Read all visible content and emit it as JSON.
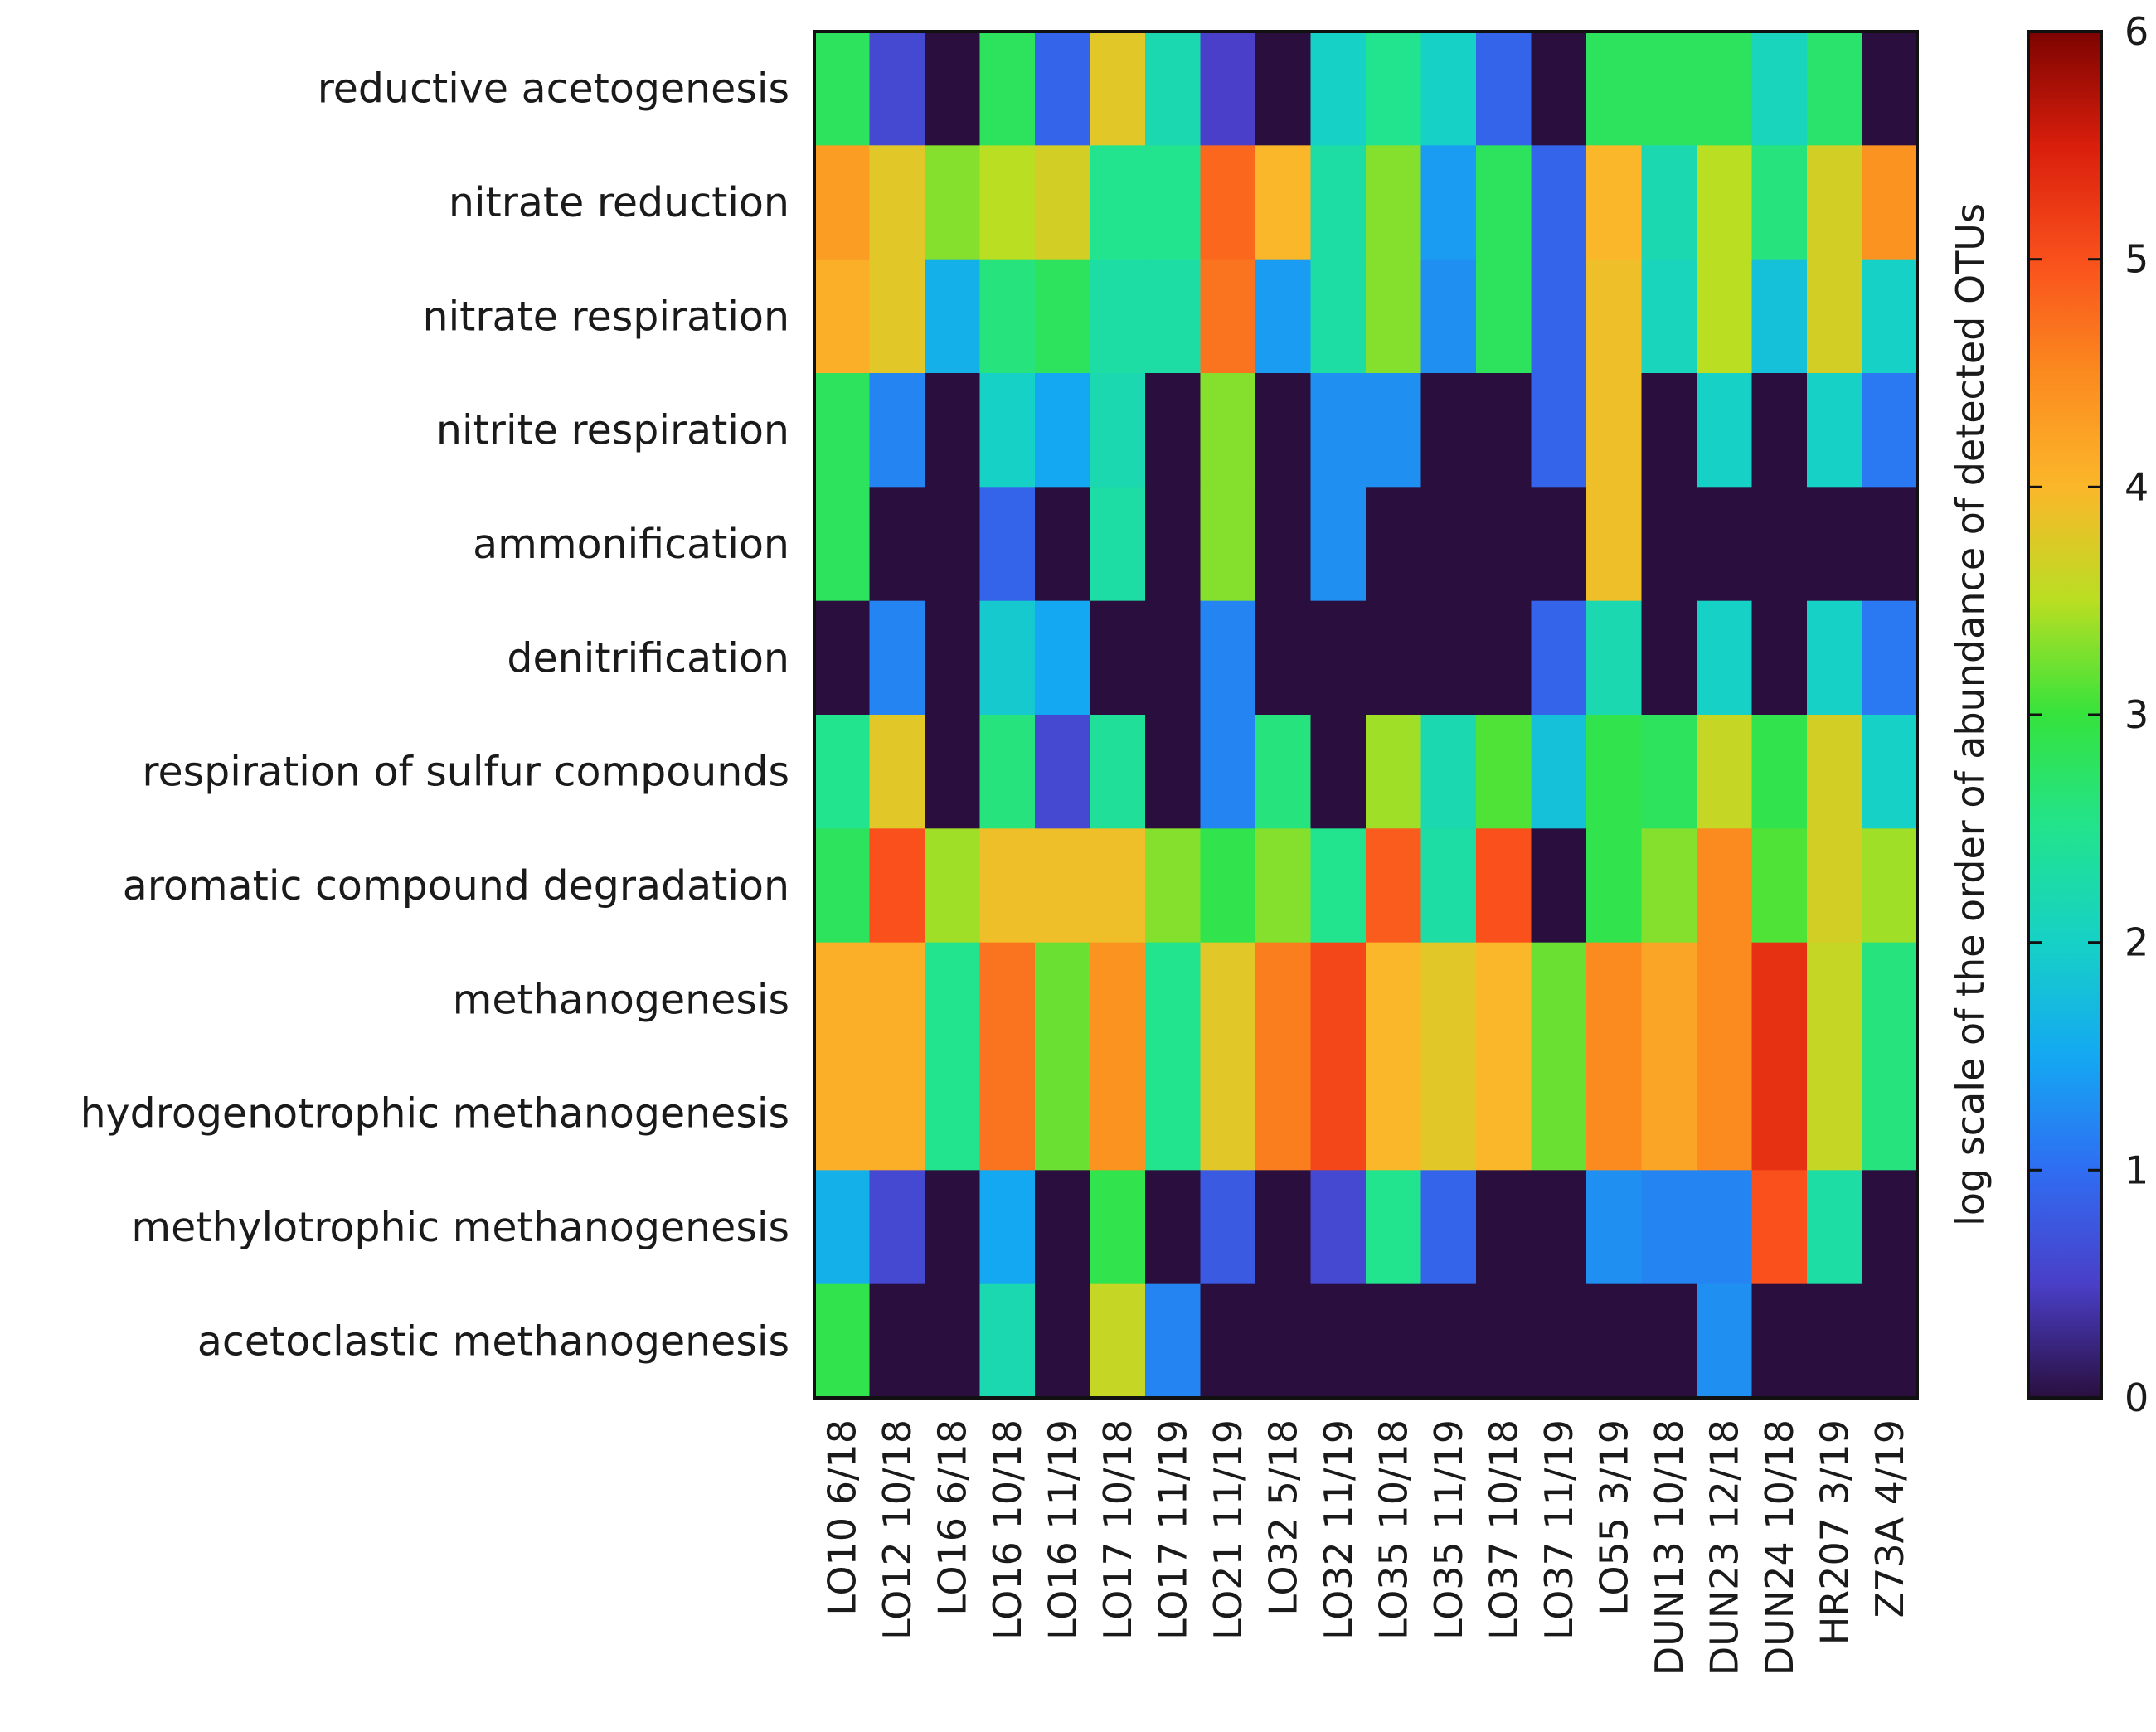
{
  "chart_data": {
    "type": "heatmap",
    "title": "",
    "xlabel": "",
    "ylabel": "",
    "colorbar": {
      "label": "log scale of the order of abundance of detected OTUs",
      "range": [
        0,
        6
      ],
      "ticks": [
        "0",
        "1",
        "2",
        "3",
        "4",
        "5",
        "6"
      ],
      "colormap": [
        {
          "v": 0.0,
          "c": "#2a0f3e"
        },
        {
          "v": 0.5,
          "c": "#4a3fc8"
        },
        {
          "v": 1.0,
          "c": "#2f6df2"
        },
        {
          "v": 1.5,
          "c": "#14a8f2"
        },
        {
          "v": 2.0,
          "c": "#16d1c6"
        },
        {
          "v": 2.5,
          "c": "#22e38e"
        },
        {
          "v": 3.0,
          "c": "#35e33c"
        },
        {
          "v": 3.5,
          "c": "#b9de22"
        },
        {
          "v": 4.0,
          "c": "#fbb72a"
        },
        {
          "v": 4.5,
          "c": "#fb8a1f"
        },
        {
          "v": 5.0,
          "c": "#f9501c"
        },
        {
          "v": 5.5,
          "c": "#d91e0c"
        },
        {
          "v": 6.0,
          "c": "#7c0301"
        }
      ]
    },
    "rows": [
      "reductive acetogenesis",
      "nitrate reduction",
      "nitrate respiration",
      "nitrite respiration",
      "ammonification",
      "denitrification",
      "respiration of sulfur compounds",
      "aromatic compound degradation",
      "methanogenesis",
      "hydrogenotrophic methanogenesis",
      "methylotrophic methanogenesis",
      "acetoclastic methanogenesis"
    ],
    "columns": [
      "LO10 6/18",
      "LO12 10/18",
      "LO16 6/18",
      "LO16 10/18",
      "LO16 11/19",
      "LO17 10/18",
      "LO17 11/19",
      "LO21 11/19",
      "LO32 5/18",
      "LO32 11/19",
      "LO35 10/18",
      "LO35 11/19",
      "LO37 10/18",
      "LO37 11/19",
      "LO55 3/19",
      "DUN13 10/18",
      "DUN23 12/18",
      "DUN24 10/18",
      "HR207 3/19",
      "Z73A 4/19"
    ],
    "values": [
      [
        2.8,
        0.6,
        0.0,
        2.8,
        0.9,
        3.8,
        2.2,
        0.5,
        0.0,
        2.0,
        2.5,
        2.0,
        0.9,
        0.0,
        2.8,
        2.8,
        2.8,
        2.1,
        2.7,
        0.0
      ],
      [
        4.3,
        3.8,
        3.3,
        3.5,
        3.7,
        2.5,
        2.5,
        4.8,
        4.0,
        2.3,
        3.3,
        1.4,
        2.8,
        0.9,
        4.0,
        2.2,
        3.5,
        2.6,
        3.7,
        4.4
      ],
      [
        4.1,
        3.8,
        1.6,
        2.6,
        2.8,
        2.3,
        2.3,
        4.7,
        1.4,
        2.3,
        3.3,
        1.3,
        2.8,
        0.9,
        3.9,
        2.1,
        3.5,
        1.8,
        3.7,
        2.0
      ],
      [
        2.8,
        1.2,
        0.0,
        2.0,
        1.5,
        2.2,
        0.0,
        3.3,
        0.0,
        1.3,
        1.3,
        0.0,
        0.0,
        0.9,
        3.9,
        0.0,
        2.0,
        0.0,
        2.0,
        1.1
      ],
      [
        2.8,
        0.0,
        0.0,
        0.9,
        0.0,
        2.3,
        0.0,
        3.3,
        0.0,
        1.3,
        0.0,
        0.0,
        0.0,
        0.0,
        3.9,
        0.0,
        0.0,
        0.0,
        0.0,
        0.0
      ],
      [
        0.0,
        1.2,
        0.0,
        1.9,
        1.5,
        0.0,
        0.0,
        1.2,
        0.0,
        0.0,
        0.0,
        0.0,
        0.0,
        0.9,
        2.2,
        0.0,
        2.0,
        0.0,
        2.0,
        1.1
      ],
      [
        2.5,
        3.8,
        0.0,
        2.6,
        0.6,
        2.4,
        0.0,
        1.2,
        2.6,
        0.0,
        3.4,
        2.2,
        3.1,
        1.8,
        2.9,
        2.8,
        3.6,
        2.9,
        3.7,
        2.0
      ],
      [
        2.8,
        5.0,
        3.4,
        3.9,
        3.9,
        3.9,
        3.3,
        2.9,
        3.3,
        2.5,
        4.9,
        2.3,
        5.0,
        0.0,
        2.9,
        3.3,
        4.5,
        3.1,
        3.7,
        3.4
      ],
      [
        4.1,
        4.1,
        2.5,
        4.7,
        3.2,
        4.4,
        2.5,
        3.8,
        4.6,
        5.1,
        4.0,
        3.8,
        4.0,
        3.2,
        4.5,
        4.2,
        4.5,
        5.3,
        3.6,
        2.6
      ],
      [
        4.1,
        4.1,
        2.5,
        4.7,
        3.2,
        4.4,
        2.5,
        3.8,
        4.6,
        5.1,
        4.0,
        3.8,
        4.0,
        3.2,
        4.5,
        4.2,
        4.5,
        5.3,
        3.6,
        2.6
      ],
      [
        1.6,
        0.6,
        0.0,
        1.5,
        0.0,
        2.9,
        0.0,
        0.8,
        0.0,
        0.6,
        2.5,
        0.9,
        0.0,
        0.0,
        1.3,
        1.2,
        1.2,
        5.0,
        2.3,
        0.0
      ],
      [
        2.9,
        0.0,
        0.0,
        2.2,
        0.0,
        3.6,
        1.2,
        0.0,
        0.0,
        0.0,
        0.0,
        0.0,
        0.0,
        0.0,
        0.0,
        0.0,
        1.3,
        0.0,
        0.0,
        0.0
      ]
    ]
  }
}
